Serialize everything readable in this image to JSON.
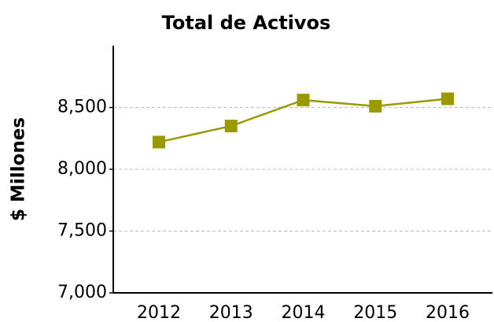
{
  "chart_data": {
    "type": "line",
    "title": "Total de Activos",
    "y_label": "$ Millones",
    "categories": [
      "2012",
      "2013",
      "2014",
      "2015",
      "2016"
    ],
    "series": [
      {
        "name": "Total de Activos",
        "color": "#9a9a00",
        "values": [
          8220,
          8350,
          8560,
          8510,
          8570
        ]
      }
    ],
    "ylim": [
      7000,
      9000
    ],
    "yticks": [
      {
        "value": 7000,
        "label": "7,000"
      },
      {
        "value": 7500,
        "label": "7,500"
      },
      {
        "value": 8000,
        "label": "8,000"
      },
      {
        "value": 8500,
        "label": "8,500"
      }
    ],
    "grid": true
  }
}
